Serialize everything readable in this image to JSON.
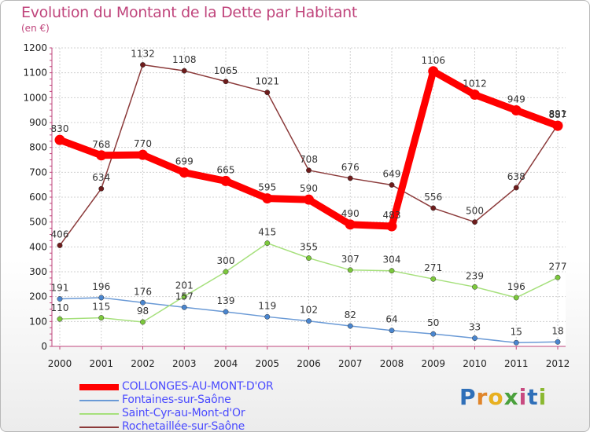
{
  "header": {
    "title": "Evolution du Montant de la Dette par Habitant",
    "subtitle": "(en €)"
  },
  "logo": {
    "letters": [
      "P",
      "r",
      "o",
      "x",
      "i",
      "t",
      "i"
    ],
    "colors": [
      "#2f6fb8",
      "#e0852a",
      "#e8b020",
      "#4aa03c",
      "#c84a80",
      "#2f6fb8",
      "#8ab830"
    ]
  },
  "chart_data": {
    "type": "line",
    "title": "Evolution du Montant de la Dette par Habitant",
    "subtitle": "(en €)",
    "categories": [
      "2000",
      "2001",
      "2002",
      "2003",
      "2004",
      "2005",
      "2006",
      "2007",
      "2008",
      "2009",
      "2010",
      "2011",
      "2012"
    ],
    "ylim": [
      0,
      1200
    ],
    "yticks": [
      "0",
      "100",
      "200",
      "300",
      "400",
      "500",
      "600",
      "700",
      "800",
      "900",
      "1000",
      "1100",
      "1200"
    ],
    "grid": true,
    "legend_position": "bottom-left",
    "series": [
      {
        "name": "COLLONGES-AU-MONT-D'OR",
        "color": "#ff0000",
        "marker": "#ff0000",
        "emphasis": true,
        "values": [
          830,
          768,
          770,
          699,
          665,
          595,
          590,
          490,
          483,
          1106,
          1012,
          949,
          887
        ]
      },
      {
        "name": "Fontaines-sur-Saône",
        "color": "#6a9ad6",
        "marker": "#4a86cf",
        "emphasis": false,
        "values": [
          191,
          196,
          176,
          157,
          139,
          119,
          102,
          82,
          64,
          50,
          33,
          15,
          18
        ]
      },
      {
        "name": "Saint-Cyr-au-Mont-d'Or",
        "color": "#a6e07c",
        "marker": "#7cc83c",
        "emphasis": false,
        "values": [
          110,
          115,
          98,
          201,
          300,
          415,
          355,
          307,
          304,
          271,
          239,
          196,
          277
        ]
      },
      {
        "name": "Rochetaillée-sur-Saône",
        "color": "#8b3a3a",
        "marker": "#6e1c1c",
        "emphasis": false,
        "values": [
          406,
          634,
          1132,
          1108,
          1065,
          1021,
          708,
          676,
          649,
          556,
          500,
          638,
          891
        ]
      }
    ]
  }
}
